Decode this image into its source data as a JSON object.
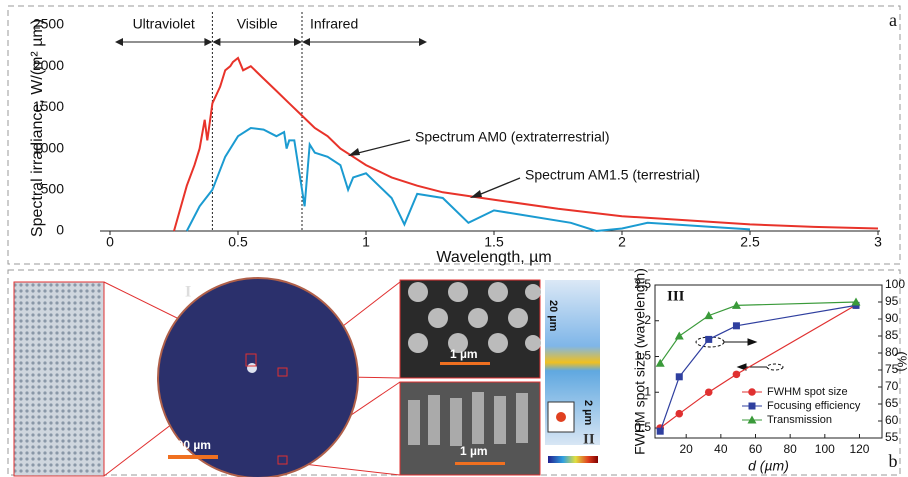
{
  "chart_data": [
    {
      "type": "line",
      "xlabel": "Wavelength, µm",
      "ylabel": "Spectral irradiance, W/(m² µm)",
      "xlim": [
        0,
        3
      ],
      "xticks": [
        0,
        0.5,
        1,
        1.5,
        2,
        2.5,
        3
      ],
      "ylim": [
        0,
        2500
      ],
      "yticks": [
        0,
        500,
        1000,
        1500,
        2000,
        2500
      ],
      "region_labels": [
        "Ultraviolet",
        "Visible",
        "Infrared"
      ],
      "vlines": [
        0.4,
        0.75
      ],
      "series": [
        {
          "name": "Spectrum AM0 (extraterrestrial)",
          "color": "#e8332a",
          "x": [
            0.25,
            0.3,
            0.33,
            0.35,
            0.37,
            0.38,
            0.4,
            0.43,
            0.45,
            0.47,
            0.48,
            0.5,
            0.52,
            0.55,
            0.6,
            0.65,
            0.7,
            0.75,
            0.8,
            0.85,
            0.9,
            0.95,
            1.0,
            1.1,
            1.2,
            1.3,
            1.5,
            1.75,
            2.0,
            2.25,
            2.5,
            2.75,
            3.0
          ],
          "values": [
            0,
            550,
            800,
            1000,
            1350,
            1100,
            1550,
            1750,
            1950,
            2000,
            2050,
            2100,
            1950,
            2000,
            1850,
            1700,
            1550,
            1400,
            1250,
            1150,
            1000,
            900,
            800,
            650,
            550,
            470,
            380,
            270,
            180,
            130,
            80,
            50,
            30
          ]
        },
        {
          "name": "Spectrum AM1.5 (terrestrial)",
          "color": "#1b9bd1",
          "x": [
            0.3,
            0.35,
            0.4,
            0.45,
            0.5,
            0.55,
            0.6,
            0.65,
            0.68,
            0.69,
            0.7,
            0.72,
            0.76,
            0.78,
            0.8,
            0.85,
            0.9,
            0.93,
            0.95,
            1.0,
            1.1,
            1.15,
            1.2,
            1.3,
            1.4,
            1.5,
            1.6,
            1.8,
            1.9,
            2.0,
            2.1,
            2.2,
            2.4,
            2.5
          ],
          "values": [
            0,
            300,
            500,
            900,
            1150,
            1250,
            1230,
            1150,
            1200,
            1000,
            1100,
            1100,
            300,
            1050,
            950,
            900,
            800,
            500,
            650,
            700,
            400,
            80,
            450,
            400,
            100,
            250,
            200,
            100,
            0,
            30,
            100,
            80,
            40,
            20
          ]
        }
      ]
    },
    {
      "type": "line",
      "label": "III",
      "xlabel": "d (µm)",
      "ylabel": "FWHM spot size (wavelength)",
      "y2label": "(%)",
      "xlim": [
        2,
        133
      ],
      "xticks": [
        20,
        40,
        60,
        80,
        100,
        120
      ],
      "ylim": [
        0.36,
        2.5
      ],
      "yticks": [
        0.5,
        1.0,
        1.5,
        2.0,
        2.5
      ],
      "y2lim": [
        55,
        100
      ],
      "y2ticks": [
        55,
        60,
        65,
        70,
        75,
        80,
        85,
        90,
        95,
        100
      ],
      "legend": "lower right",
      "x": [
        5,
        16,
        33,
        49,
        118
      ],
      "series": [
        {
          "name": "FWHM spot size",
          "color": "#e03030",
          "marker": "circle",
          "values": [
            0.5,
            0.7,
            1.0,
            1.25,
            2.22
          ]
        },
        {
          "name": "Focusing efficiency",
          "color": "#2f3f9f",
          "marker": "square",
          "axis": "y2",
          "values": [
            57,
            73,
            84,
            88,
            94
          ]
        },
        {
          "name": "Transmission",
          "color": "#3a9a3a",
          "marker": "triangle",
          "axis": "y2",
          "values": [
            77,
            85,
            91,
            94,
            95
          ]
        }
      ]
    }
  ],
  "figure": {
    "panel_a": "a",
    "panel_b": "b",
    "label_i": "I",
    "label_ii": "II",
    "scale_200": "200 µm",
    "scale_1_top": "1 µm",
    "scale_1_bottom": "1 µm",
    "scale_20": "20 µm",
    "scale_2": "2 µm"
  }
}
